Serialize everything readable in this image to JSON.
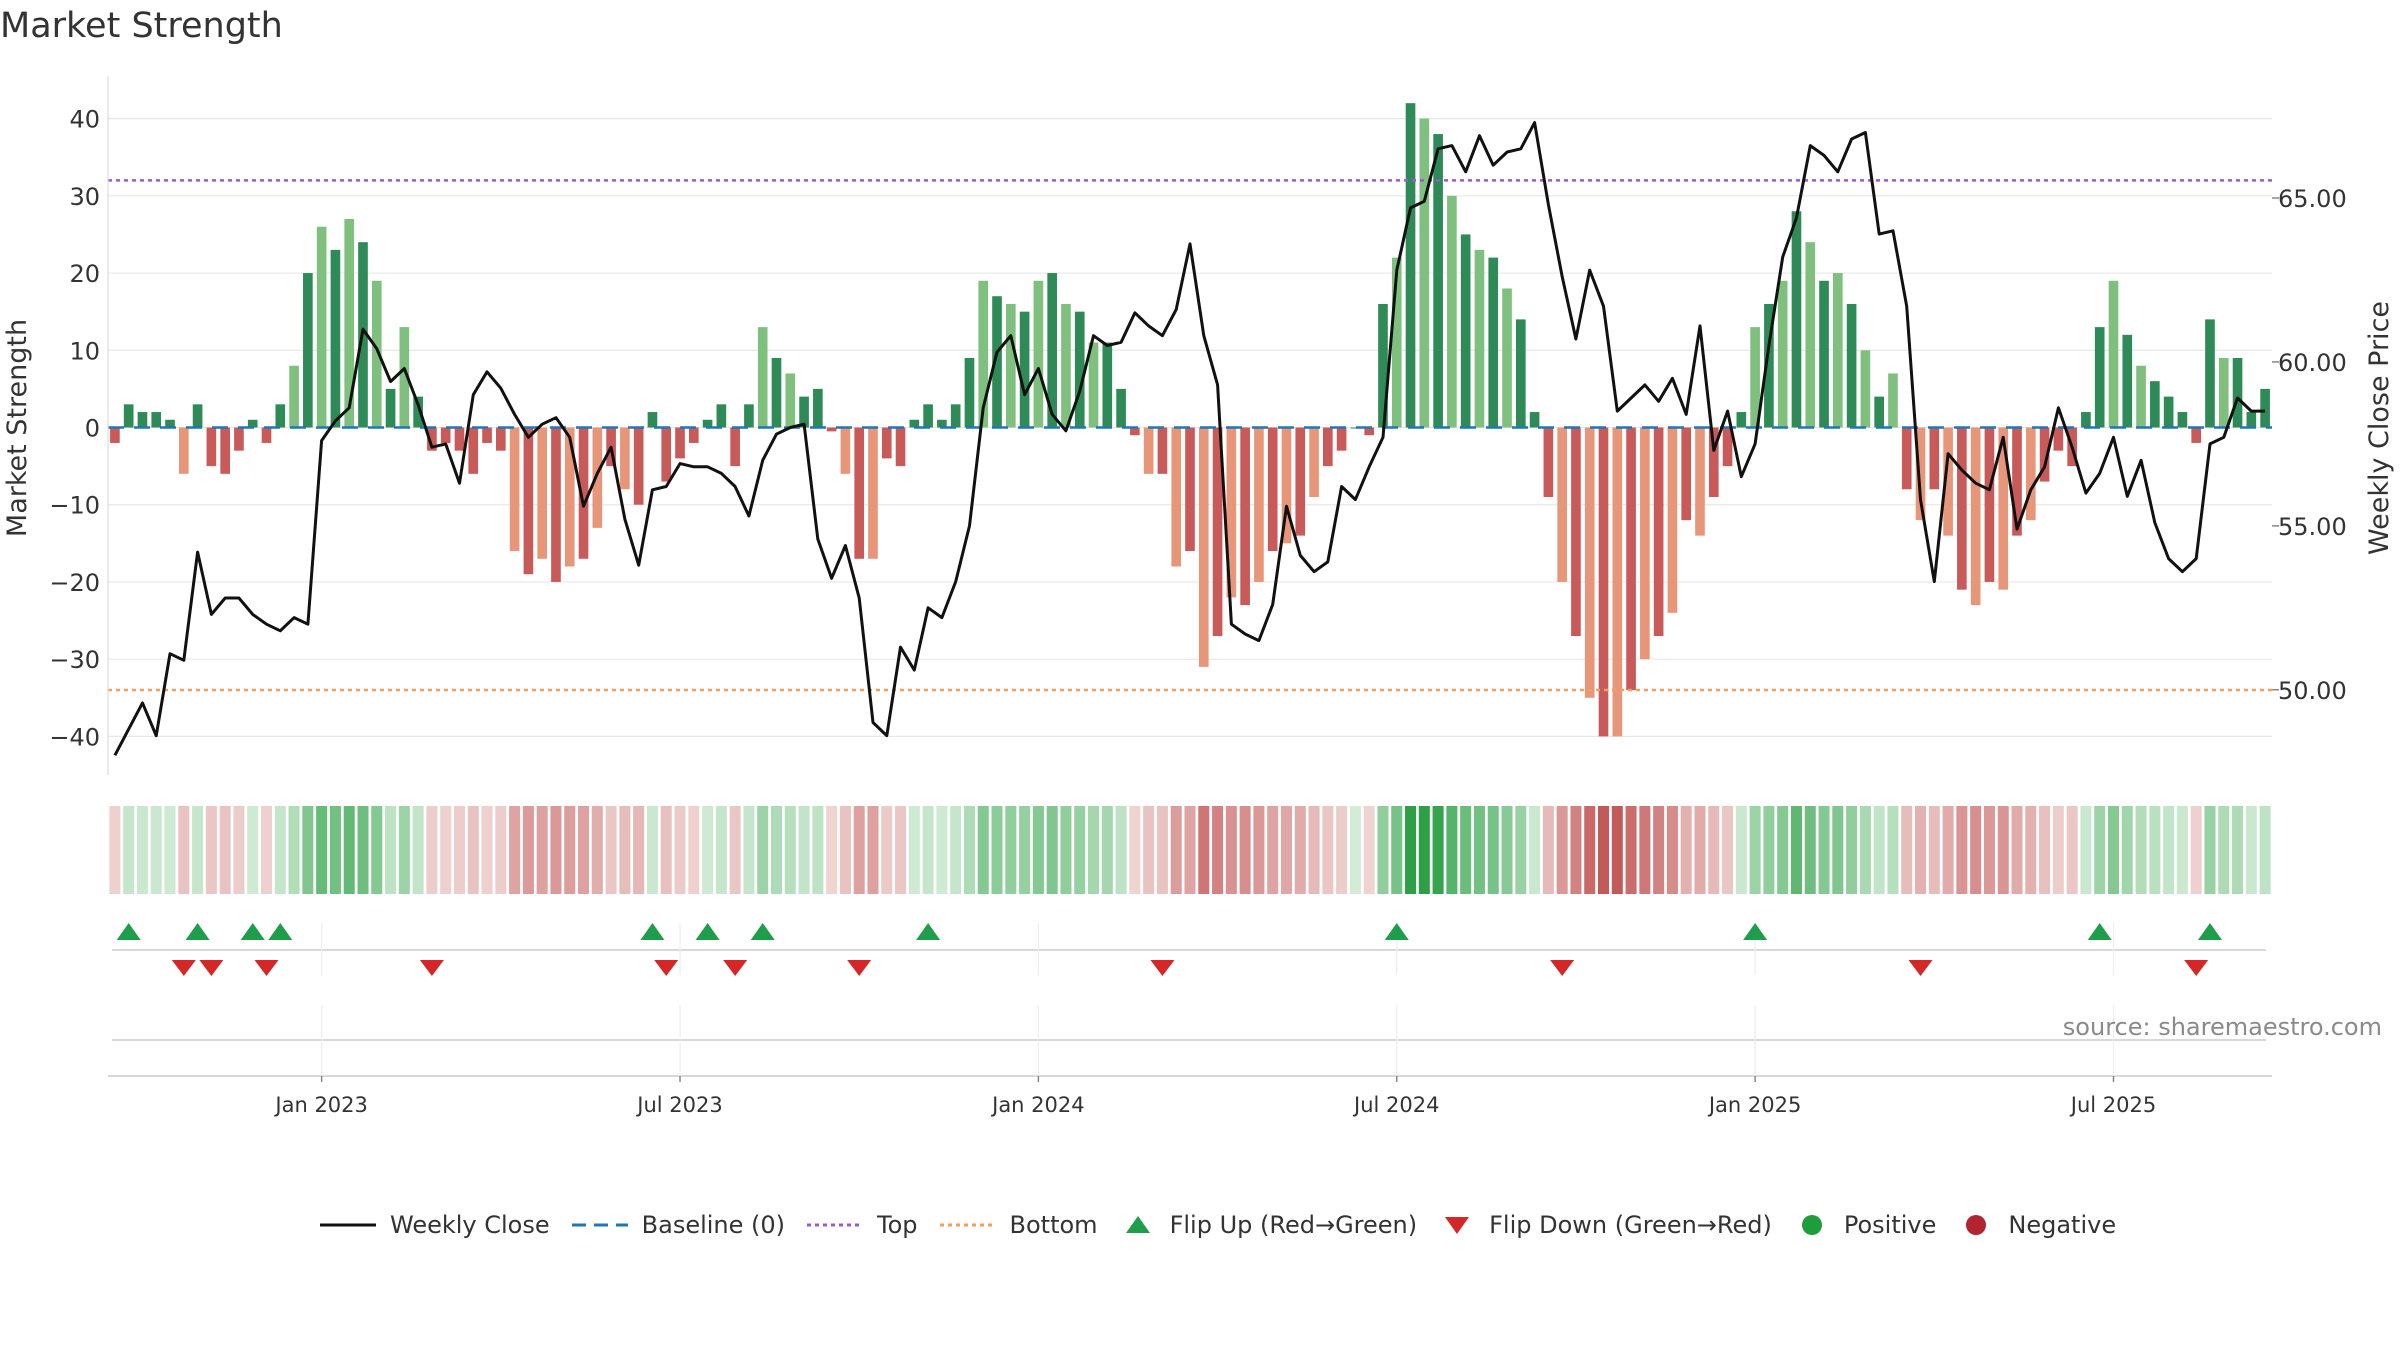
{
  "chart_data": {
    "title": "Market Strength",
    "type": "bar+line",
    "source_note": "source: sharemaestro.com",
    "left_axis": {
      "label": "Market Strength",
      "ticks": [
        40,
        30,
        20,
        10,
        0,
        -10,
        -20,
        -30,
        -40
      ],
      "tick_labels": [
        "40",
        "30",
        "20",
        "10",
        "0",
        "−10",
        "−20",
        "−30",
        "−40"
      ],
      "range": [
        -45,
        45
      ]
    },
    "right_axis": {
      "label": "Weekly Close Price",
      "ticks": [
        65,
        60,
        55,
        50
      ],
      "tick_labels": [
        "65.00",
        "60.00",
        "55.00",
        "50.00"
      ],
      "range": [
        47.4,
        68.6
      ]
    },
    "x_axis": {
      "tick_labels": [
        "Jan 2023",
        "Jul 2023",
        "Jan 2024",
        "Jul 2024",
        "Jan 2025",
        "Jul 2025"
      ],
      "tick_weeks": [
        15,
        41,
        67,
        93,
        119,
        145
      ],
      "weeks_total": 157
    },
    "reference_lines": {
      "baseline": 0,
      "top": 32,
      "bottom": -34
    },
    "market_strength": [
      -2,
      3,
      2,
      2,
      1,
      -6,
      3,
      -5,
      -6,
      -3,
      1,
      -2,
      3,
      8,
      20,
      26,
      23,
      27,
      24,
      19,
      5,
      13,
      4,
      -3,
      -2,
      -3,
      -6,
      -2,
      -3,
      -16,
      -19,
      -17,
      -20,
      -18,
      -17,
      -13,
      -5,
      -8,
      -10,
      2,
      -7,
      -4,
      -2,
      1,
      3,
      -5,
      3,
      13,
      9,
      7,
      4,
      5,
      -0.5,
      -6,
      -17,
      -17,
      -4,
      -5,
      1,
      3,
      1,
      3,
      9,
      19,
      17,
      16,
      15,
      19,
      20,
      16,
      15,
      11,
      11,
      5,
      -1,
      -6,
      -6,
      -18,
      -16,
      -31,
      -27,
      -22,
      -23,
      -20,
      -16,
      -15,
      -14,
      -9,
      -5,
      -3,
      0,
      -1,
      16,
      22,
      42,
      40,
      38,
      30,
      25,
      23,
      22,
      18,
      14,
      2,
      -9,
      -20,
      -27,
      -35,
      -40,
      -40,
      -34,
      -30,
      -27,
      -24,
      -12,
      -14,
      -9,
      -5,
      2,
      13,
      16,
      19,
      28,
      24,
      19,
      20,
      16,
      10,
      4,
      7,
      -8,
      -12,
      -8,
      -14,
      -21,
      -23,
      -20,
      -21,
      -14,
      -12,
      -7,
      -3,
      -5,
      2,
      13,
      19,
      12,
      8,
      6,
      4,
      2,
      -2,
      14,
      9,
      9,
      2,
      5
    ],
    "weekly_close": [
      48.0,
      48.8,
      49.6,
      48.6,
      51.1,
      50.9,
      54.2,
      52.3,
      52.8,
      52.8,
      52.3,
      52.0,
      51.8,
      52.2,
      52.0,
      57.6,
      58.2,
      58.6,
      61.0,
      60.4,
      59.4,
      59.8,
      58.7,
      57.4,
      57.5,
      56.3,
      59.0,
      59.7,
      59.2,
      58.4,
      57.7,
      58.1,
      58.3,
      57.7,
      55.6,
      56.6,
      57.4,
      55.2,
      53.8,
      56.1,
      56.2,
      56.9,
      56.8,
      56.8,
      56.6,
      56.2,
      55.3,
      57.0,
      57.8,
      58.0,
      58.1,
      54.6,
      53.4,
      54.4,
      52.8,
      49.0,
      48.6,
      51.3,
      50.6,
      52.5,
      52.2,
      53.3,
      55.0,
      58.6,
      60.3,
      60.8,
      59.0,
      59.8,
      58.4,
      57.9,
      59.1,
      60.8,
      60.5,
      60.6,
      61.5,
      61.1,
      60.8,
      61.6,
      63.6,
      60.8,
      59.3,
      52.0,
      51.7,
      51.5,
      52.6,
      55.6,
      54.1,
      53.6,
      53.9,
      56.2,
      55.8,
      56.8,
      57.7,
      62.8,
      64.7,
      64.9,
      66.5,
      66.6,
      65.8,
      66.9,
      66.0,
      66.4,
      66.5,
      67.3,
      64.8,
      62.6,
      60.7,
      62.8,
      61.7,
      58.5,
      58.9,
      59.3,
      58.8,
      59.5,
      58.4,
      61.1,
      57.3,
      58.5,
      56.5,
      57.5,
      60.5,
      63.2,
      64.4,
      66.6,
      66.3,
      65.8,
      66.8,
      67.0,
      63.9,
      64.0,
      61.7,
      55.8,
      53.3,
      57.2,
      56.7,
      56.3,
      56.1,
      57.7,
      54.9,
      56.1,
      56.8,
      58.6,
      57.4,
      56.0,
      56.6,
      57.7,
      55.9,
      57.0,
      55.1,
      54.0,
      53.6,
      54.0,
      57.5,
      57.7,
      58.9,
      58.5,
      58.5
    ],
    "flip_up_weeks": [
      1,
      6,
      10,
      12,
      39,
      43,
      47,
      59,
      93,
      119,
      144,
      152
    ],
    "flip_down_weeks": [
      5,
      7,
      11,
      23,
      40,
      45,
      54,
      76,
      105,
      131,
      151
    ],
    "legend": [
      "Weekly Close",
      "Baseline (0)",
      "Top",
      "Bottom",
      "Flip Up (Red→Green)",
      "Flip Down (Green→Red)",
      "Positive",
      "Negative"
    ],
    "colors": {
      "pos_strong": "#2e8b57",
      "pos_weak": "#7fc07f",
      "neg_strong": "#c85a5a",
      "neg_weak": "#e8967a",
      "price_line": "#111111",
      "baseline": "#1f77b4",
      "top": "#9b59d0",
      "bottom": "#f0a058",
      "flip_up": "#1e9e4a",
      "flip_down": "#d62728",
      "positive": "#1e9e3a",
      "negative": "#b22530"
    }
  }
}
